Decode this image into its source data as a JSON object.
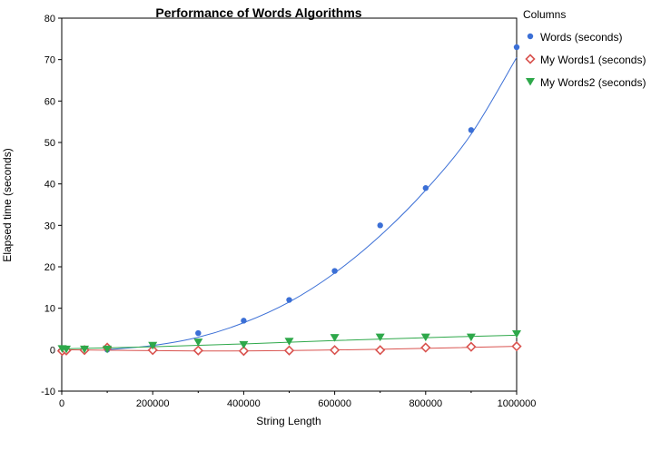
{
  "chart_data": {
    "type": "scatter",
    "title": "Performance of Words Algorithms",
    "xlabel": "String Length",
    "ylabel": "Elapsed time (seconds)",
    "xlim": [
      0,
      1000000
    ],
    "ylim": [
      -10,
      80
    ],
    "x_ticks": [
      "0",
      "200000",
      "400000",
      "600000",
      "800000",
      "1000000"
    ],
    "y_ticks": [
      "-10",
      "0",
      "10",
      "20",
      "30",
      "40",
      "50",
      "60",
      "70",
      "80"
    ],
    "grid": false,
    "legend_title": "Columns",
    "legend_position": "right",
    "series": [
      {
        "name": "Words (seconds)",
        "marker": "dot",
        "color": "#3b6fd6",
        "points": [
          [
            1000,
            0
          ],
          [
            10000,
            0
          ],
          [
            50000,
            0
          ],
          [
            100000,
            0
          ],
          [
            200000,
            1
          ],
          [
            300000,
            4
          ],
          [
            400000,
            7
          ],
          [
            500000,
            12
          ],
          [
            600000,
            19
          ],
          [
            700000,
            30
          ],
          [
            800000,
            39
          ],
          [
            900000,
            53
          ],
          [
            1000000,
            73
          ]
        ],
        "fit": [
          [
            100000,
            0
          ],
          [
            200000,
            1
          ],
          [
            300000,
            3
          ],
          [
            400000,
            6.5
          ],
          [
            500000,
            11.5
          ],
          [
            600000,
            18.5
          ],
          [
            700000,
            27.5
          ],
          [
            800000,
            38.5
          ],
          [
            900000,
            52
          ],
          [
            1000000,
            70.5
          ]
        ]
      },
      {
        "name": "My Words1 (seconds)",
        "marker": "diamond-open",
        "color": "#d9534f",
        "points": [
          [
            1000,
            -0.3
          ],
          [
            10000,
            -0.2
          ],
          [
            50000,
            -0.1
          ],
          [
            100000,
            0.5
          ],
          [
            200000,
            -0.1
          ],
          [
            300000,
            -0.2
          ],
          [
            400000,
            -0.3
          ],
          [
            500000,
            -0.2
          ],
          [
            600000,
            -0.1
          ],
          [
            700000,
            -0.1
          ],
          [
            800000,
            0.5
          ],
          [
            900000,
            0.7
          ],
          [
            1000000,
            0.8
          ]
        ],
        "fit": [
          [
            0,
            0
          ],
          [
            300000,
            -0.3
          ],
          [
            500000,
            -0.2
          ],
          [
            700000,
            0.1
          ],
          [
            1000000,
            0.8
          ]
        ]
      },
      {
        "name": "My Words2 (seconds)",
        "marker": "triangle-down",
        "color": "#2ea84a",
        "points": [
          [
            1000,
            0.2
          ],
          [
            10000,
            0.1
          ],
          [
            50000,
            0.1
          ],
          [
            100000,
            0.1
          ],
          [
            200000,
            1
          ],
          [
            300000,
            1.8
          ],
          [
            400000,
            1.2
          ],
          [
            500000,
            2
          ],
          [
            600000,
            2.9
          ],
          [
            700000,
            3
          ],
          [
            800000,
            3
          ],
          [
            900000,
            3
          ],
          [
            1000000,
            3.8
          ]
        ],
        "fit": [
          [
            0,
            0.2
          ],
          [
            200000,
            0.7
          ],
          [
            400000,
            1.4
          ],
          [
            600000,
            2.2
          ],
          [
            800000,
            2.9
          ],
          [
            1000000,
            3.5
          ]
        ]
      }
    ]
  }
}
